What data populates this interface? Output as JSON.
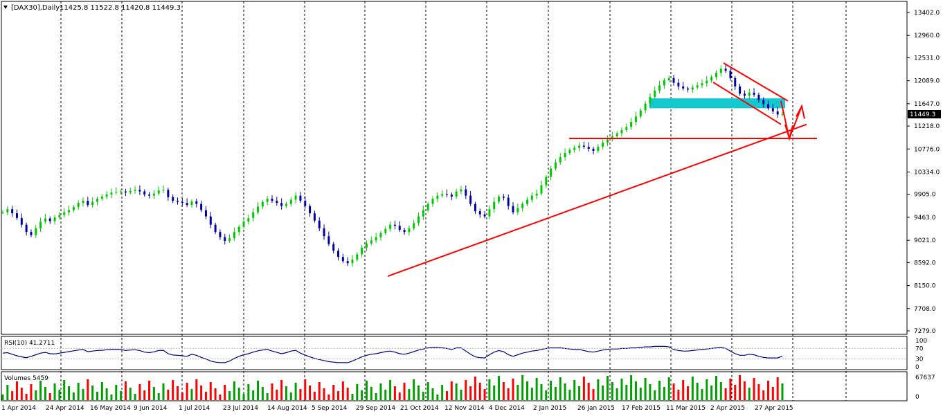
{
  "window": {
    "symbol": "[DAX30],Daily",
    "ohlc": "11425.8 11522.8 11420.8 11449.3",
    "dropdown_icon": "triangle-down-icon"
  },
  "chart_data": [
    {
      "type": "candlestick",
      "panel": "price",
      "y_ticks": [
        "13402.0",
        "12960.0",
        "12531.0",
        "12089.0",
        "11647.0",
        "11218.0",
        "10776.0",
        "10334.0",
        "9905.0",
        "9463.0",
        "9021.0",
        "8592.0",
        "8150.0",
        "7708.0",
        "7279.0"
      ],
      "ylim": [
        7279.0,
        13402.0
      ],
      "current_price": "11449.3",
      "x_ticks": [
        "1 Apr 2014",
        "24 Apr 2014",
        "16 May 2014",
        "9 Jun 2014",
        "1 Jul 2014",
        "23 Jul 2014",
        "14 Aug 2014",
        "5 Sep 2014",
        "29 Sep 2014",
        "21 Oct 2014",
        "12 Nov 2014",
        "4 Dec 2014",
        "2 Jan 2015",
        "26 Jan 2015",
        "17 Feb 2015",
        "11 Mar 2015",
        "2 Apr 2015",
        "27 Apr 2015"
      ],
      "grid": "vertical dashed",
      "series_closes": [
        9560,
        9620,
        9540,
        9450,
        9320,
        9180,
        9120,
        9250,
        9380,
        9440,
        9390,
        9460,
        9510,
        9560,
        9600,
        9660,
        9740,
        9780,
        9700,
        9760,
        9820,
        9860,
        9900,
        9940,
        9950,
        9960,
        9940,
        9970,
        9990,
        9960,
        9900,
        9880,
        9920,
        9980,
        9990,
        9850,
        9780,
        9760,
        9740,
        9700,
        9770,
        9720,
        9600,
        9480,
        9320,
        9180,
        9080,
        9010,
        9060,
        9180,
        9280,
        9380,
        9450,
        9560,
        9670,
        9760,
        9820,
        9780,
        9740,
        9680,
        9720,
        9800,
        9880,
        9780,
        9680,
        9540,
        9400,
        9250,
        9100,
        8950,
        8820,
        8700,
        8620,
        8580,
        8650,
        8750,
        8880,
        8960,
        9020,
        9080,
        9160,
        9240,
        9320,
        9300,
        9220,
        9180,
        9250,
        9350,
        9480,
        9600,
        9720,
        9820,
        9880,
        9910,
        9900,
        9860,
        9960,
        10000,
        9880,
        9720,
        9580,
        9520,
        9480,
        9620,
        9760,
        9860,
        9840,
        9680,
        9560,
        9640,
        9720,
        9800,
        9880,
        9920,
        10080,
        10240,
        10400,
        10520,
        10620,
        10700,
        10760,
        10800,
        10840,
        10820,
        10780,
        10740,
        10820,
        10900,
        10960,
        11020,
        11080,
        11140,
        11200,
        11300,
        11400,
        11520,
        11650,
        11780,
        11900,
        12000,
        12100,
        12140,
        12050,
        11980,
        11940,
        11920,
        11960,
        12000,
        12040,
        12090,
        12160,
        12240,
        12320,
        12280,
        12140,
        11980,
        11840,
        11800,
        11860,
        11820,
        11720,
        11640,
        11560,
        11500,
        11440,
        11449
      ]
    },
    {
      "type": "line",
      "panel": "rsi",
      "label": "RSI(10) 41.2711",
      "levels": [
        "100",
        "70",
        "30",
        "0"
      ],
      "ylim": [
        0,
        100
      ],
      "values": [
        52,
        54,
        48,
        42,
        38,
        35,
        40,
        46,
        52,
        55,
        50,
        49,
        52,
        55,
        58,
        61,
        64,
        66,
        58,
        60,
        62,
        63,
        65,
        66,
        66,
        66,
        62,
        64,
        65,
        62,
        56,
        54,
        57,
        62,
        63,
        50,
        45,
        44,
        42,
        40,
        48,
        44,
        36,
        30,
        22,
        18,
        16,
        16,
        22,
        32,
        40,
        46,
        50,
        56,
        61,
        64,
        66,
        60,
        55,
        50,
        54,
        60,
        63,
        52,
        45,
        38,
        32,
        28,
        24,
        20,
        18,
        16,
        16,
        16,
        22,
        30,
        38,
        44,
        48,
        50,
        54,
        58,
        60,
        56,
        50,
        48,
        52,
        58,
        64,
        68,
        72,
        74,
        74,
        72,
        70,
        66,
        72,
        72,
        60,
        48,
        38,
        35,
        34,
        46,
        56,
        62,
        58,
        46,
        40,
        46,
        52,
        56,
        60,
        62,
        66,
        70,
        72,
        72,
        72,
        70,
        68,
        66,
        66,
        62,
        58,
        56,
        60,
        64,
        66,
        68,
        68,
        70,
        70,
        72,
        72,
        74,
        76,
        76,
        78,
        78,
        78,
        76,
        66,
        62,
        60,
        60,
        62,
        64,
        66,
        68,
        70,
        72,
        74,
        70,
        60,
        50,
        44,
        44,
        48,
        46,
        40,
        36,
        34,
        34,
        34,
        41
      ]
    },
    {
      "type": "bar",
      "panel": "volumes",
      "label": "Volumes 5459",
      "y_ticks": [
        "67637",
        "0"
      ],
      "ylim": [
        0,
        67637
      ],
      "series": [
        {
          "name": "up",
          "color": "#00a000"
        },
        {
          "name": "down",
          "color": "#ff0000"
        }
      ]
    }
  ],
  "annotations": {
    "zone_color": "#14c8d0",
    "line_color": "#ff0000"
  },
  "colors": {
    "candle_up": "#00c800",
    "candle_down": "#0000a0",
    "rsi_line": "#000080",
    "grid": "#000000",
    "current_price_bg": "#000000"
  }
}
